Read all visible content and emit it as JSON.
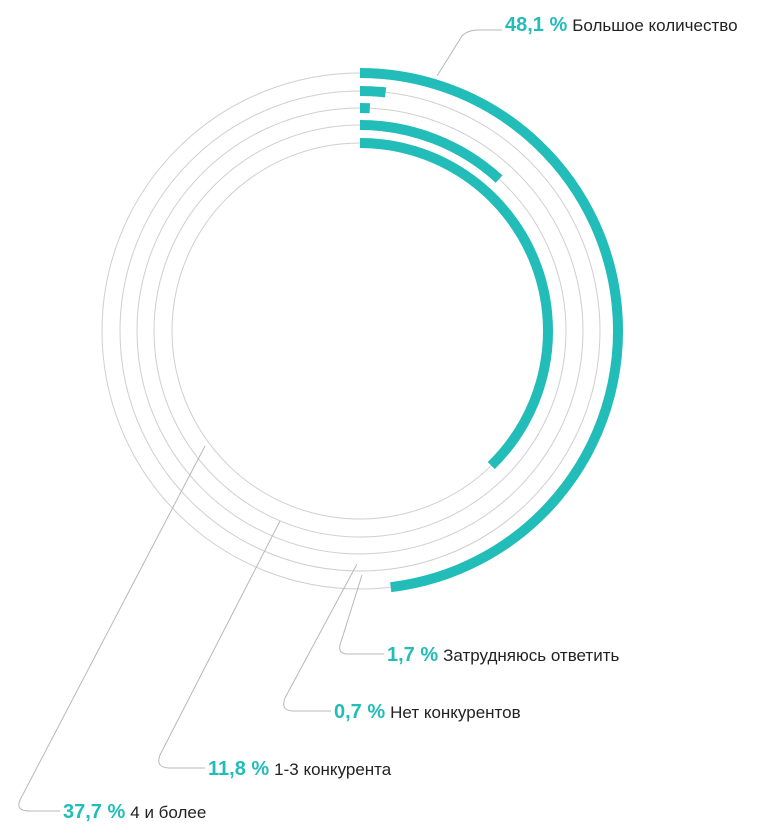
{
  "colors": {
    "accent": "#22bcb9",
    "guide": "#cfcfcf",
    "leader": "#b8b8b8",
    "text": "#222222"
  },
  "chart_data": {
    "type": "radial-bar",
    "unit": "%",
    "items": [
      {
        "value": 48.1,
        "value_label": "48,1 %",
        "label": "Большое количество"
      },
      {
        "value": 1.7,
        "value_label": "1,7 %",
        "label": "Затрудняюсь ответить"
      },
      {
        "value": 0.7,
        "value_label": "0,7 %",
        "label": "Нет конкурентов"
      },
      {
        "value": 11.8,
        "value_label": "11,8 %",
        "label": "1-3 конкурента"
      },
      {
        "value": 37.7,
        "value_label": "37,7 %",
        "label": "4 и более"
      }
    ]
  }
}
